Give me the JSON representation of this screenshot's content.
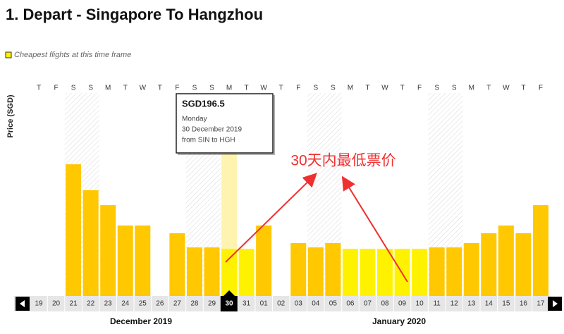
{
  "chart_data": {
    "type": "bar",
    "title": "1. Depart - Singapore To Hangzhou",
    "legend": "Cheapest flights at this time frame",
    "y_label": "Price (SGD)",
    "days": [
      "T",
      "F",
      "S",
      "S",
      "M",
      "T",
      "W",
      "T",
      "F",
      "S",
      "S",
      "M",
      "T",
      "W",
      "T",
      "F",
      "S",
      "S",
      "M",
      "T",
      "W",
      "T",
      "F",
      "S",
      "S",
      "M",
      "T",
      "W",
      "T",
      "F"
    ],
    "categories": [
      "19",
      "20",
      "21",
      "22",
      "23",
      "24",
      "25",
      "26",
      "27",
      "28",
      "29",
      "30",
      "31",
      "01",
      "02",
      "03",
      "04",
      "05",
      "06",
      "07",
      "08",
      "09",
      "10",
      "11",
      "12",
      "13",
      "14",
      "15",
      "16",
      "17"
    ],
    "values": [
      null,
      null,
      548,
      440,
      378,
      293,
      293,
      null,
      261,
      202,
      202,
      196.5,
      196.5,
      293,
      null,
      220,
      202,
      220,
      196.5,
      196.5,
      196.5,
      196.5,
      196.5,
      202,
      202,
      220,
      261,
      293,
      261,
      378
    ],
    "color": "#ffc800",
    "cheapest_color": "#fff200",
    "months": [
      "December 2019",
      "January 2020"
    ],
    "tooltip": {
      "price": "SGD196.5",
      "day": "Monday",
      "date": "30 December 2019",
      "route": "from SIN to HGH"
    },
    "annotation": "30天内最低票价"
  }
}
